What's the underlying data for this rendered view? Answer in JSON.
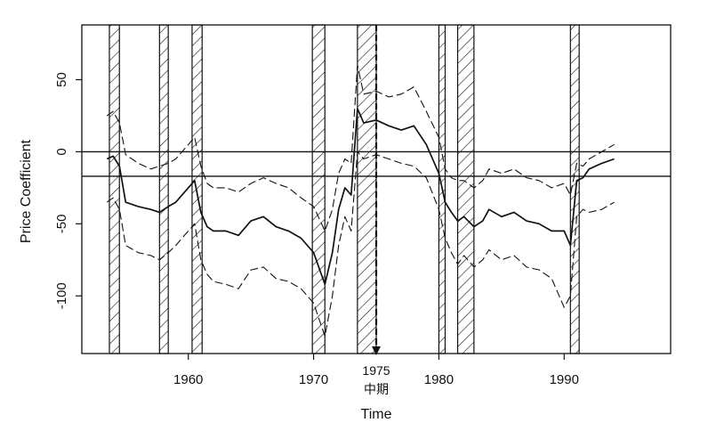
{
  "chart_data": {
    "type": "line",
    "title": "",
    "xlabel": "Time",
    "ylabel": "Price Coefficient",
    "xlim": [
      1951.5,
      1998.5
    ],
    "ylim": [
      -140,
      88
    ],
    "x_ticks": [
      1960,
      1970,
      1980,
      1990
    ],
    "y_ticks": [
      50,
      0,
      -50,
      -100
    ],
    "grid": false,
    "legend": "none",
    "hlines": [
      0,
      -17
    ],
    "marker": {
      "x": 1975,
      "label": "1975",
      "sublabel": "中期"
    },
    "shaded_periods": [
      [
        1953.7,
        1954.5
      ],
      [
        1957.7,
        1958.4
      ],
      [
        1960.3,
        1961.1
      ],
      [
        1969.9,
        1970.9
      ],
      [
        1973.5,
        1975.0
      ],
      [
        1980.0,
        1980.5
      ],
      [
        1981.5,
        1982.8
      ],
      [
        1990.5,
        1991.2
      ]
    ],
    "series": [
      {
        "style": "dashed",
        "x": [
          1953.5,
          1954.0,
          1954.5,
          1955.0,
          1956.0,
          1957.0,
          1957.7,
          1958.4,
          1959.0,
          1960.0,
          1960.5,
          1961.0,
          1961.5,
          1962.0,
          1963.0,
          1964.0,
          1965.0,
          1966.0,
          1967.0,
          1968.0,
          1969.0,
          1970.0,
          1970.9,
          1971.5,
          1972.0,
          1972.5,
          1973.0,
          1973.5,
          1974.0,
          1975.0,
          1976.0,
          1977.0,
          1978.0,
          1979.0,
          1980.0,
          1980.5,
          1981.0,
          1981.5,
          1982.0,
          1982.8,
          1983.5,
          1984.0,
          1985.0,
          1986.0,
          1987.0,
          1988.0,
          1989.0,
          1990.0,
          1990.5,
          1991.0,
          1991.5,
          1992.0,
          1993.0,
          1994.0
        ],
        "values": [
          25,
          28,
          20,
          -2,
          -8,
          -12,
          -10,
          -8,
          -5,
          5,
          10,
          -10,
          -22,
          -25,
          -25,
          -28,
          -22,
          -18,
          -22,
          -25,
          -32,
          -38,
          -55,
          -40,
          -15,
          -5,
          -8,
          60,
          40,
          42,
          38,
          40,
          45,
          28,
          10,
          -12,
          -18,
          -20,
          -20,
          -25,
          -20,
          -12,
          -15,
          -12,
          -18,
          -20,
          -25,
          -22,
          -30,
          -8,
          -10,
          -5,
          0,
          5
        ]
      },
      {
        "style": "solid",
        "x": [
          1953.5,
          1954.0,
          1954.5,
          1955.0,
          1956.0,
          1957.0,
          1957.7,
          1958.4,
          1959.0,
          1960.0,
          1960.5,
          1961.0,
          1961.5,
          1962.0,
          1963.0,
          1964.0,
          1965.0,
          1966.0,
          1967.0,
          1968.0,
          1969.0,
          1970.0,
          1970.9,
          1971.5,
          1972.0,
          1972.5,
          1973.0,
          1973.5,
          1974.0,
          1975.0,
          1976.0,
          1977.0,
          1978.0,
          1979.0,
          1980.0,
          1980.5,
          1981.0,
          1981.5,
          1982.0,
          1982.8,
          1983.5,
          1984.0,
          1985.0,
          1986.0,
          1987.0,
          1988.0,
          1989.0,
          1990.0,
          1990.5,
          1991.0,
          1991.5,
          1992.0,
          1993.0,
          1994.0
        ],
        "values": [
          -5,
          -3,
          -10,
          -35,
          -38,
          -40,
          -42,
          -38,
          -35,
          -25,
          -20,
          -42,
          -52,
          -55,
          -55,
          -58,
          -48,
          -45,
          -52,
          -55,
          -60,
          -70,
          -92,
          -70,
          -40,
          -25,
          -30,
          30,
          20,
          22,
          18,
          15,
          18,
          5,
          -15,
          -35,
          -42,
          -48,
          -45,
          -52,
          -48,
          -40,
          -45,
          -42,
          -48,
          -50,
          -55,
          -55,
          -65,
          -20,
          -18,
          -12,
          -8,
          -5
        ]
      },
      {
        "style": "dashed",
        "x": [
          1953.5,
          1954.0,
          1954.5,
          1955.0,
          1956.0,
          1957.0,
          1957.7,
          1958.4,
          1959.0,
          1960.0,
          1960.5,
          1961.0,
          1961.5,
          1962.0,
          1963.0,
          1964.0,
          1965.0,
          1966.0,
          1967.0,
          1968.0,
          1969.0,
          1970.0,
          1970.9,
          1971.5,
          1972.0,
          1972.5,
          1973.0,
          1973.5,
          1974.0,
          1975.0,
          1976.0,
          1977.0,
          1978.0,
          1979.0,
          1980.0,
          1980.5,
          1981.0,
          1981.5,
          1982.0,
          1982.8,
          1983.5,
          1984.0,
          1985.0,
          1986.0,
          1987.0,
          1988.0,
          1989.0,
          1990.0,
          1990.5,
          1991.0,
          1991.5,
          1992.0,
          1993.0,
          1994.0
        ],
        "values": [
          -35,
          -32,
          -40,
          -65,
          -70,
          -72,
          -75,
          -70,
          -65,
          -55,
          -50,
          -75,
          -85,
          -90,
          -92,
          -95,
          -82,
          -80,
          -88,
          -90,
          -95,
          -105,
          -128,
          -100,
          -65,
          -45,
          -55,
          0,
          -5,
          -2,
          -5,
          -8,
          -10,
          -18,
          -40,
          -60,
          -70,
          -78,
          -72,
          -80,
          -75,
          -68,
          -75,
          -72,
          -80,
          -82,
          -88,
          -108,
          -100,
          -45,
          -40,
          -42,
          -40,
          -35
        ]
      }
    ]
  }
}
